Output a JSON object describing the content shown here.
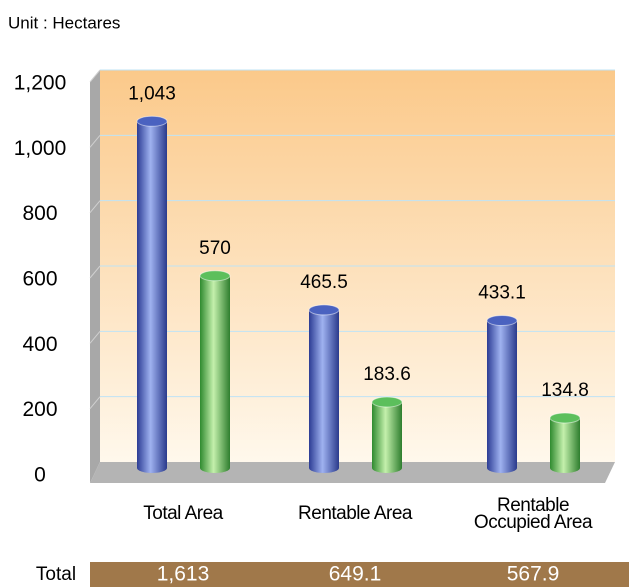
{
  "chart_data": {
    "type": "bar",
    "subtitle": "Unit : Hectares",
    "categories": [
      "Total Area",
      "Rentable Area",
      "Rentable Occupied Area"
    ],
    "series": [
      {
        "color": "#4a62c0",
        "values": [
          1043,
          465.5,
          433.1
        ],
        "value_labels": [
          "1,043",
          "465.5",
          "433.1"
        ]
      },
      {
        "color": "#5cbf5c",
        "values": [
          570,
          183.6,
          134.8
        ]
      }
    ],
    "ylim": [
      0,
      1200
    ],
    "yticks": [
      0,
      200,
      400,
      600,
      800,
      {
        "value": 1000,
        "label": "1,000"
      },
      {
        "value": 1200,
        "label": "1,200"
      }
    ],
    "grid": true,
    "total": {
      "label": "Total",
      "values": [
        1613,
        649.1,
        567.9
      ],
      "value_labels": [
        "1,613",
        "649.1",
        "567.9"
      ]
    }
  }
}
